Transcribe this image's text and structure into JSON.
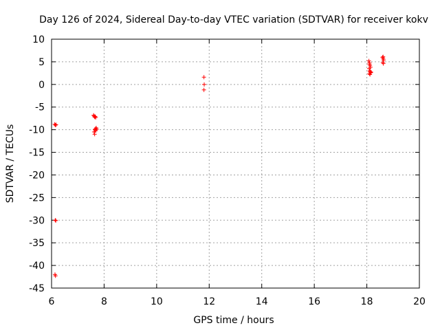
{
  "chart_data": {
    "type": "scatter",
    "title": "Day 126 of 2024, Sidereal Day-to-day VTEC variation (SDTVAR) for receiver kokv",
    "xlabel": "GPS time / hours",
    "ylabel": "SDTVAR / TECUs",
    "xlim": [
      6,
      20
    ],
    "ylim": [
      -45,
      10
    ],
    "xticks": [
      6,
      8,
      10,
      12,
      14,
      16,
      18,
      20
    ],
    "yticks": [
      10,
      5,
      0,
      -5,
      -10,
      -15,
      -20,
      -25,
      -30,
      -35,
      -40,
      -45
    ],
    "grid": true,
    "marker": "+",
    "series": [
      {
        "name": "SDTVAR",
        "color": "#ff0000",
        "x": [
          6.12,
          6.15,
          6.17,
          6.14,
          6.16,
          6.13,
          6.15,
          7.6,
          7.62,
          7.64,
          7.66,
          7.68,
          7.62,
          7.65,
          7.67,
          7.7,
          7.72,
          7.64,
          7.68,
          11.8,
          11.81,
          11.8,
          18.08,
          18.1,
          18.12,
          18.14,
          18.09,
          18.11,
          18.13,
          18.15,
          18.1,
          18.12,
          18.16,
          18.1,
          18.6,
          18.62,
          18.64,
          18.61,
          18.63,
          18.62
        ],
        "y": [
          -8.8,
          -9.0,
          -8.9,
          -30.0,
          -30.1,
          -42.0,
          -42.3,
          -6.8,
          -7.0,
          -7.2,
          -7.1,
          -7.3,
          -10.5,
          -10.0,
          -9.8,
          -9.6,
          -9.9,
          -11.0,
          -10.2,
          1.6,
          0.0,
          -1.2,
          5.2,
          4.8,
          4.2,
          3.8,
          3.5,
          3.0,
          2.8,
          2.6,
          2.4,
          2.2,
          2.7,
          4.5,
          6.0,
          5.7,
          5.4,
          4.9,
          4.6,
          6.1
        ]
      }
    ]
  }
}
